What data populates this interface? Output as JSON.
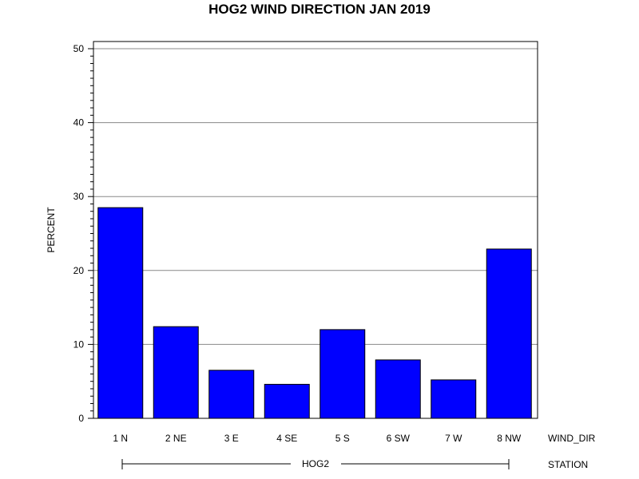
{
  "chart_data": {
    "type": "bar",
    "title": "HOG2 WIND DIRECTION JAN 2019",
    "ylabel": "PERCENT",
    "xlabel": "WIND_DIR",
    "group_axis_label": "STATION",
    "group_label": "HOG2",
    "categories": [
      "1 N",
      "2 NE",
      "3 E",
      "4 SE",
      "5 S",
      "6 SW",
      "7 W",
      "8 NW"
    ],
    "values": [
      28.5,
      12.4,
      6.5,
      4.6,
      12.0,
      7.9,
      5.2,
      22.9
    ],
    "ylim": [
      0,
      50
    ],
    "yticks": [
      0,
      10,
      20,
      30,
      40,
      50
    ],
    "grid": true,
    "bar_color": "#0000ff",
    "bar_edge_color": "#000000"
  }
}
